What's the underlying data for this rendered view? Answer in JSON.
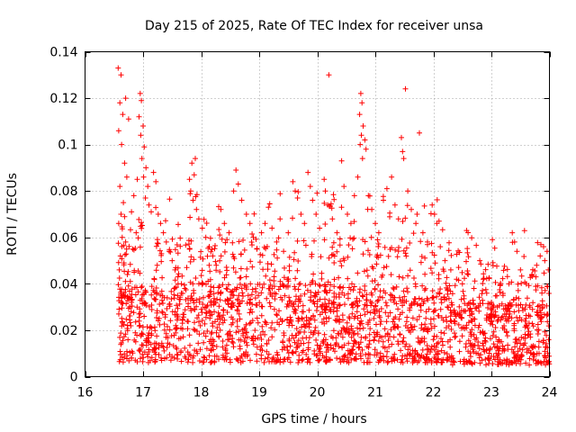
{
  "chart_data": {
    "type": "scatter",
    "title": "Day 215 of 2025, Rate Of TEC Index for receiver unsa",
    "xlabel": "GPS time / hours",
    "ylabel": "ROTI / TECUs",
    "xlim": [
      16,
      24
    ],
    "ylim": [
      0,
      0.14
    ],
    "xticks": [
      "16",
      "17",
      "18",
      "19",
      "20",
      "21",
      "22",
      "23",
      "24"
    ],
    "yticks": [
      "0",
      "0.02",
      "0.04",
      "0.06",
      "0.08",
      "0.1",
      "0.12",
      "0.14"
    ],
    "grid": true,
    "marker": "+",
    "color": "#ff0000",
    "series": [
      {
        "name": "ROTI",
        "points": [
          [
            16.57,
            0.133
          ],
          [
            16.62,
            0.13
          ],
          [
            16.6,
            0.118
          ],
          [
            16.65,
            0.113
          ],
          [
            16.58,
            0.106
          ],
          [
            16.63,
            0.1
          ],
          [
            16.7,
            0.12
          ],
          [
            16.75,
            0.111
          ],
          [
            16.68,
            0.092
          ],
          [
            16.72,
            0.086
          ],
          [
            16.6,
            0.082
          ],
          [
            16.66,
            0.075
          ],
          [
            16.62,
            0.07
          ],
          [
            16.58,
            0.066
          ],
          [
            16.64,
            0.06
          ],
          [
            16.7,
            0.058
          ],
          [
            16.61,
            0.052
          ],
          [
            16.67,
            0.049
          ],
          [
            16.59,
            0.046
          ],
          [
            16.73,
            0.044
          ],
          [
            16.78,
            0.041
          ],
          [
            16.82,
            0.055
          ],
          [
            16.88,
            0.062
          ],
          [
            16.8,
            0.071
          ],
          [
            16.84,
            0.078
          ],
          [
            16.9,
            0.085
          ],
          [
            16.95,
            0.122
          ],
          [
            16.97,
            0.119
          ],
          [
            16.93,
            0.112
          ],
          [
            17.0,
            0.108
          ],
          [
            16.96,
            0.104
          ],
          [
            17.02,
            0.099
          ],
          [
            16.98,
            0.094
          ],
          [
            17.05,
            0.09
          ],
          [
            17.01,
            0.086
          ],
          [
            17.08,
            0.082
          ],
          [
            17.04,
            0.077
          ],
          [
            17.1,
            0.074
          ],
          [
            17.14,
            0.071
          ],
          [
            17.18,
            0.088
          ],
          [
            17.22,
            0.084
          ],
          [
            17.26,
            0.07
          ],
          [
            17.3,
            0.066
          ],
          [
            17.35,
            0.062
          ],
          [
            17.4,
            0.058
          ],
          [
            17.45,
            0.054
          ],
          [
            17.5,
            0.05
          ],
          [
            17.55,
            0.046
          ],
          [
            17.6,
            0.043
          ],
          [
            17.66,
            0.04
          ],
          [
            17.72,
            0.038
          ],
          [
            17.8,
            0.085
          ],
          [
            17.84,
            0.092
          ],
          [
            17.88,
            0.087
          ],
          [
            17.82,
            0.08
          ],
          [
            17.9,
            0.094
          ],
          [
            17.86,
            0.076
          ],
          [
            17.92,
            0.072
          ],
          [
            17.96,
            0.068
          ],
          [
            18.02,
            0.064
          ],
          [
            18.08,
            0.06
          ],
          [
            18.14,
            0.056
          ],
          [
            18.2,
            0.052
          ],
          [
            18.26,
            0.048
          ],
          [
            18.34,
            0.072
          ],
          [
            18.4,
            0.066
          ],
          [
            18.48,
            0.062
          ],
          [
            18.56,
            0.08
          ],
          [
            18.6,
            0.089
          ],
          [
            18.64,
            0.083
          ],
          [
            18.7,
            0.076
          ],
          [
            18.78,
            0.07
          ],
          [
            18.84,
            0.066
          ],
          [
            18.9,
            0.06
          ],
          [
            18.96,
            0.055
          ],
          [
            19.04,
            0.062
          ],
          [
            19.1,
            0.066
          ],
          [
            19.16,
            0.073
          ],
          [
            19.22,
            0.064
          ],
          [
            19.3,
            0.058
          ],
          [
            19.36,
            0.068
          ],
          [
            19.42,
            0.054
          ],
          [
            19.5,
            0.062
          ],
          [
            19.58,
            0.084
          ],
          [
            19.62,
            0.08
          ],
          [
            19.66,
            0.077
          ],
          [
            19.72,
            0.07
          ],
          [
            19.78,
            0.066
          ],
          [
            19.84,
            0.088
          ],
          [
            19.88,
            0.082
          ],
          [
            19.92,
            0.076
          ],
          [
            19.98,
            0.07
          ],
          [
            20.04,
            0.064
          ],
          [
            20.12,
            0.085
          ],
          [
            20.14,
            0.08
          ],
          [
            20.18,
            0.074
          ],
          [
            20.2,
            0.13
          ],
          [
            20.26,
            0.068
          ],
          [
            20.34,
            0.062
          ],
          [
            20.42,
            0.093
          ],
          [
            20.46,
            0.082
          ],
          [
            20.52,
            0.07
          ],
          [
            20.58,
            0.066
          ],
          [
            20.64,
            0.078
          ],
          [
            20.7,
            0.086
          ],
          [
            20.75,
            0.122
          ],
          [
            20.77,
            0.118
          ],
          [
            20.73,
            0.113
          ],
          [
            20.79,
            0.108
          ],
          [
            20.76,
            0.104
          ],
          [
            20.74,
            0.1
          ],
          [
            20.78,
            0.094
          ],
          [
            20.82,
            0.102
          ],
          [
            20.84,
            0.098
          ],
          [
            20.88,
            0.078
          ],
          [
            20.94,
            0.072
          ],
          [
            21.0,
            0.066
          ],
          [
            21.06,
            0.062
          ],
          [
            21.14,
            0.076
          ],
          [
            21.2,
            0.081
          ],
          [
            21.28,
            0.086
          ],
          [
            21.34,
            0.074
          ],
          [
            21.4,
            0.068
          ],
          [
            21.45,
            0.103
          ],
          [
            21.47,
            0.097
          ],
          [
            21.49,
            0.094
          ],
          [
            21.52,
            0.124
          ],
          [
            21.56,
            0.08
          ],
          [
            21.62,
            0.072
          ],
          [
            21.7,
            0.066
          ],
          [
            21.76,
            0.105
          ],
          [
            21.82,
            0.062
          ],
          [
            21.9,
            0.058
          ],
          [
            21.98,
            0.074
          ],
          [
            22.02,
            0.07
          ],
          [
            22.06,
            0.066
          ],
          [
            22.12,
            0.056
          ],
          [
            22.2,
            0.05
          ],
          [
            22.3,
            0.046
          ],
          [
            22.4,
            0.042
          ],
          [
            22.5,
            0.04
          ],
          [
            22.6,
            0.044
          ],
          [
            22.7,
            0.038
          ],
          [
            22.8,
            0.05
          ],
          [
            22.86,
            0.042
          ],
          [
            22.92,
            0.036
          ],
          [
            23.0,
            0.032
          ],
          [
            23.1,
            0.03
          ],
          [
            23.2,
            0.035
          ],
          [
            23.3,
            0.04
          ],
          [
            23.36,
            0.062
          ],
          [
            23.4,
            0.058
          ],
          [
            23.44,
            0.054
          ],
          [
            23.5,
            0.046
          ],
          [
            23.6,
            0.04
          ],
          [
            23.7,
            0.044
          ],
          [
            23.78,
            0.048
          ],
          [
            23.84,
            0.052
          ],
          [
            23.9,
            0.056
          ],
          [
            23.96,
            0.054
          ],
          [
            23.92,
            0.05
          ],
          [
            23.98,
            0.046
          ]
        ]
      }
    ]
  }
}
